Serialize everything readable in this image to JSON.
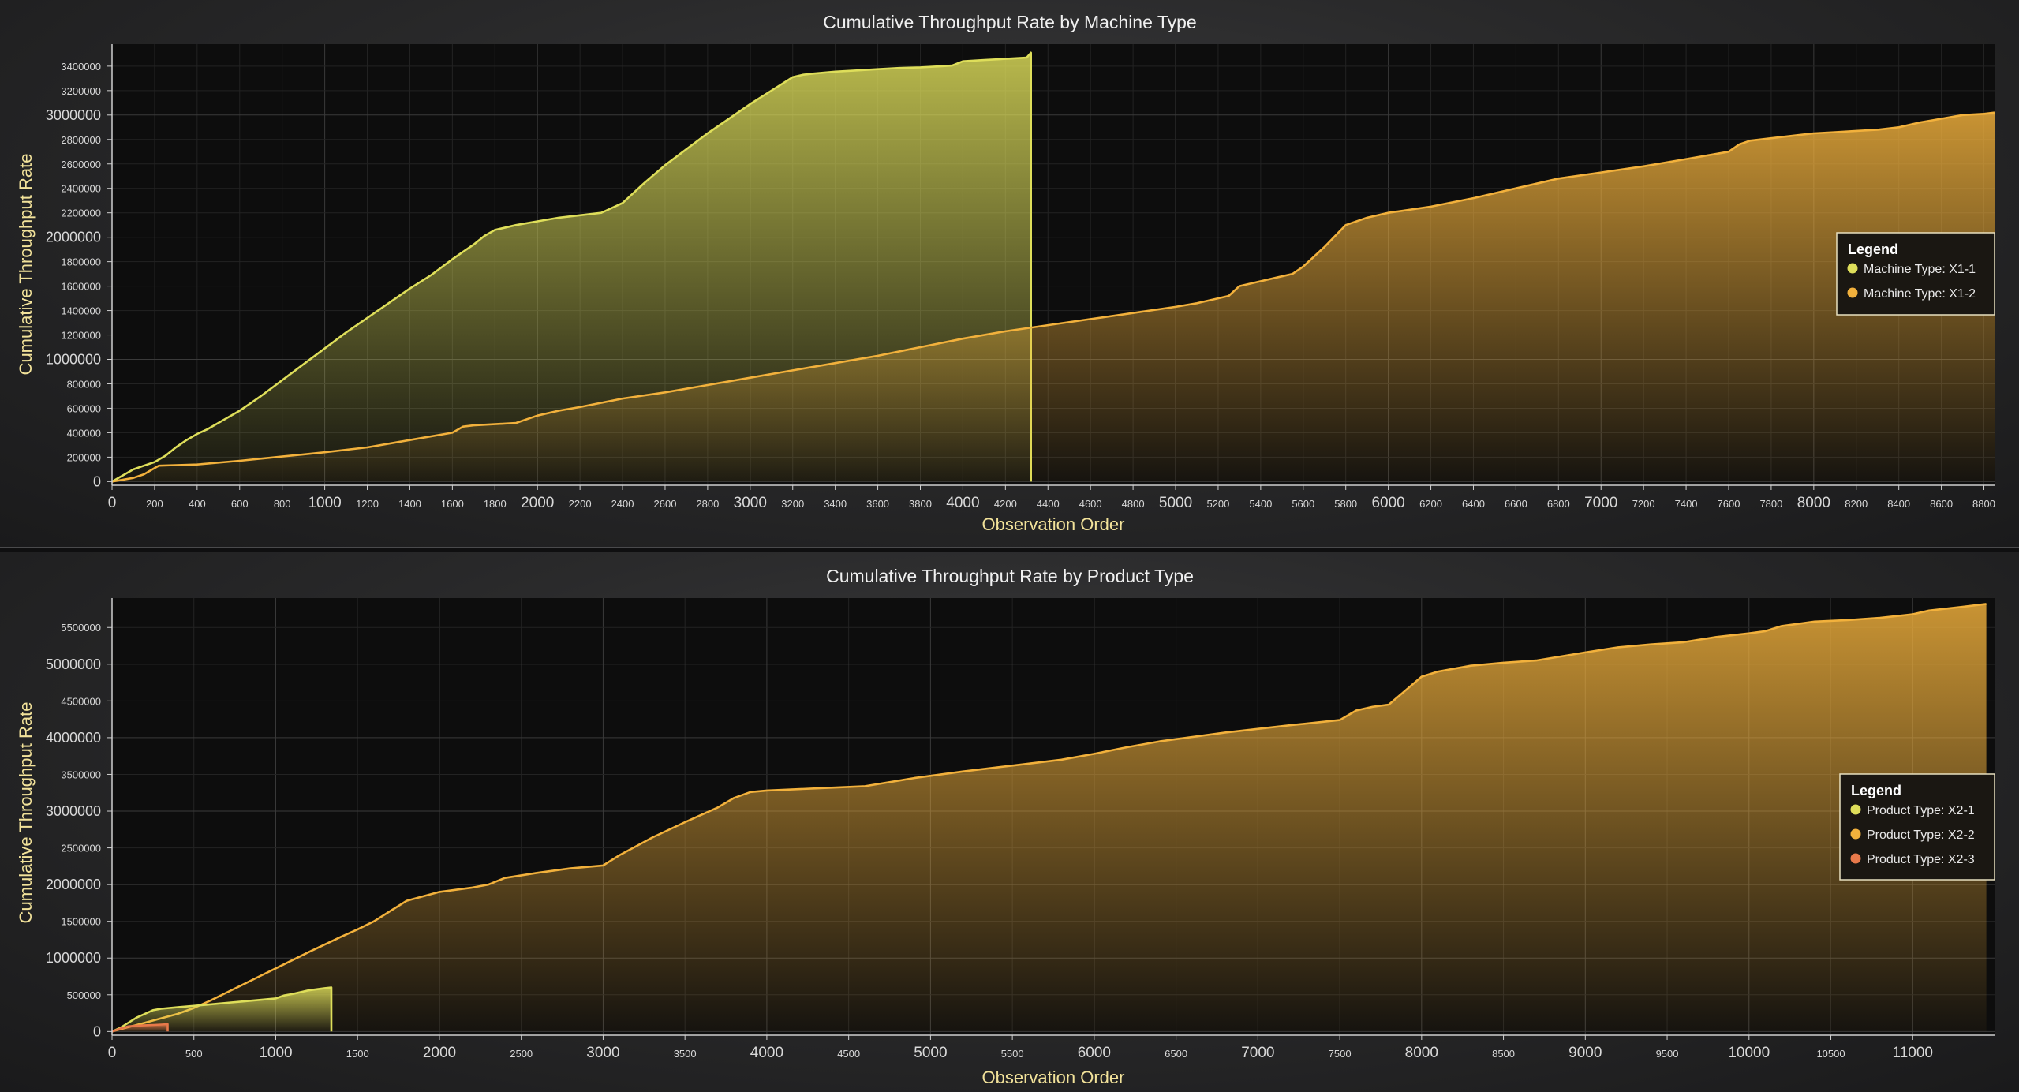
{
  "chart_data": [
    {
      "type": "area",
      "title": "Cumulative Throughput Rate by Machine Type",
      "xlabel": "Observation Order",
      "ylabel": "Cumulative Throughput Rate",
      "xlim": [
        0,
        8850
      ],
      "ylim": [
        -30000,
        3580000
      ],
      "x_ticks": [
        0,
        200,
        400,
        600,
        800,
        1000,
        1200,
        1400,
        1600,
        1800,
        2000,
        2200,
        2400,
        2600,
        2800,
        3000,
        3200,
        3400,
        3600,
        3800,
        4000,
        4200,
        4400,
        4600,
        4800,
        5000,
        5200,
        5400,
        5600,
        5800,
        6000,
        6200,
        6400,
        6600,
        6800,
        7000,
        7200,
        7400,
        7600,
        7800,
        8000,
        8200,
        8400,
        8600,
        8800
      ],
      "y_ticks": [
        0,
        200000,
        400000,
        600000,
        800000,
        1000000,
        1200000,
        1400000,
        1600000,
        1800000,
        2000000,
        2200000,
        2400000,
        2600000,
        2800000,
        3000000,
        3200000,
        3400000
      ],
      "major_every": 5,
      "grid": true,
      "legend": {
        "title": "Legend",
        "placement": "right",
        "entries": [
          "Machine Type: X1-1",
          "Machine Type: X1-2"
        ]
      },
      "series": [
        {
          "name": "Machine Type: X1-1",
          "color": "#dede5a",
          "x": [
            0,
            50,
            100,
            150,
            200,
            250,
            300,
            350,
            400,
            450,
            500,
            550,
            600,
            650,
            700,
            800,
            900,
            1000,
            1100,
            1200,
            1300,
            1400,
            1500,
            1600,
            1650,
            1700,
            1750,
            1800,
            1900,
            2000,
            2100,
            2200,
            2300,
            2350,
            2400,
            2450,
            2500,
            2600,
            2700,
            2800,
            2900,
            3000,
            3100,
            3200,
            3250,
            3300,
            3400,
            3500,
            3600,
            3700,
            3800,
            3900,
            3950,
            4000,
            4100,
            4200,
            4250,
            4300,
            4320,
            4320
          ],
          "values": [
            0,
            50000,
            100000,
            130000,
            160000,
            210000,
            280000,
            340000,
            390000,
            430000,
            480000,
            530000,
            580000,
            640000,
            700000,
            830000,
            960000,
            1090000,
            1220000,
            1340000,
            1460000,
            1580000,
            1690000,
            1820000,
            1880000,
            1940000,
            2010000,
            2060000,
            2100000,
            2130000,
            2160000,
            2180000,
            2200000,
            2240000,
            2280000,
            2360000,
            2440000,
            2590000,
            2720000,
            2850000,
            2970000,
            3090000,
            3200000,
            3310000,
            3330000,
            3340000,
            3355000,
            3365000,
            3375000,
            3385000,
            3390000,
            3400000,
            3405000,
            3440000,
            3450000,
            3460000,
            3465000,
            3470000,
            3510000,
            0
          ]
        },
        {
          "name": "Machine Type: X1-2",
          "color": "#f2b13c",
          "x": [
            0,
            100,
            150,
            200,
            220,
            300,
            400,
            600,
            800,
            1000,
            1200,
            1400,
            1600,
            1650,
            1700,
            1800,
            1900,
            2000,
            2100,
            2200,
            2400,
            2600,
            2800,
            3000,
            3200,
            3400,
            3600,
            3800,
            4000,
            4200,
            4400,
            4600,
            4800,
            5000,
            5100,
            5200,
            5250,
            5300,
            5400,
            5500,
            5550,
            5600,
            5700,
            5800,
            5900,
            6000,
            6200,
            6400,
            6600,
            6800,
            7000,
            7200,
            7400,
            7600,
            7650,
            7700,
            7800,
            7900,
            8000,
            8100,
            8200,
            8300,
            8400,
            8500,
            8600,
            8700,
            8800,
            8850
          ],
          "values": [
            0,
            30000,
            60000,
            110000,
            130000,
            135000,
            140000,
            170000,
            205000,
            240000,
            280000,
            340000,
            400000,
            450000,
            460000,
            470000,
            480000,
            540000,
            580000,
            610000,
            680000,
            730000,
            790000,
            850000,
            910000,
            970000,
            1030000,
            1100000,
            1170000,
            1230000,
            1280000,
            1330000,
            1380000,
            1430000,
            1460000,
            1500000,
            1520000,
            1600000,
            1640000,
            1680000,
            1700000,
            1760000,
            1920000,
            2100000,
            2160000,
            2200000,
            2250000,
            2320000,
            2400000,
            2480000,
            2530000,
            2580000,
            2640000,
            2700000,
            2760000,
            2790000,
            2810000,
            2830000,
            2850000,
            2860000,
            2870000,
            2880000,
            2900000,
            2940000,
            2970000,
            3000000,
            3010000,
            3020000
          ]
        }
      ]
    },
    {
      "type": "area",
      "title": "Cumulative Throughput Rate by Product Type",
      "xlabel": "Observation Order",
      "ylabel": "Cumulative Throughput Rate",
      "xlim": [
        0,
        11500
      ],
      "ylim": [
        -50000,
        5900000
      ],
      "x_ticks": [
        0,
        500,
        1000,
        1500,
        2000,
        2500,
        3000,
        3500,
        4000,
        4500,
        5000,
        5500,
        6000,
        6500,
        7000,
        7500,
        8000,
        8500,
        9000,
        9500,
        10000,
        10500,
        11000
      ],
      "y_ticks": [
        0,
        500000,
        1000000,
        1500000,
        2000000,
        2500000,
        3000000,
        3500000,
        4000000,
        4500000,
        5000000,
        5500000
      ],
      "major_every": 2,
      "grid": true,
      "legend": {
        "title": "Legend",
        "placement": "right",
        "entries": [
          "Product Type: X2-1",
          "Product Type: X2-2",
          "Product Type: X2-3"
        ]
      },
      "series": [
        {
          "name": "Product Type: X2-2",
          "color": "#f2b13c",
          "x": [
            0,
            100,
            200,
            300,
            400,
            500,
            600,
            700,
            800,
            900,
            1000,
            1200,
            1400,
            1500,
            1600,
            1700,
            1800,
            2000,
            2200,
            2300,
            2400,
            2600,
            2800,
            3000,
            3100,
            3300,
            3500,
            3700,
            3800,
            3900,
            4000,
            4300,
            4600,
            4900,
            5200,
            5500,
            5800,
            6000,
            6200,
            6400,
            6800,
            7200,
            7500,
            7600,
            7700,
            7800,
            8000,
            8100,
            8300,
            8500,
            8700,
            9000,
            9200,
            9400,
            9600,
            9800,
            10000,
            10100,
            10200,
            10400,
            10600,
            10800,
            11000,
            11100,
            11300,
            11450
          ],
          "values": [
            0,
            60000,
            120000,
            180000,
            240000,
            320000,
            420000,
            530000,
            640000,
            750000,
            860000,
            1080000,
            1290000,
            1390000,
            1500000,
            1640000,
            1780000,
            1900000,
            1960000,
            2000000,
            2090000,
            2160000,
            2220000,
            2260000,
            2400000,
            2640000,
            2850000,
            3050000,
            3180000,
            3260000,
            3280000,
            3310000,
            3340000,
            3450000,
            3540000,
            3620000,
            3700000,
            3780000,
            3870000,
            3950000,
            4070000,
            4170000,
            4240000,
            4370000,
            4420000,
            4450000,
            4830000,
            4900000,
            4980000,
            5020000,
            5050000,
            5160000,
            5230000,
            5270000,
            5300000,
            5370000,
            5420000,
            5450000,
            5520000,
            5580000,
            5600000,
            5630000,
            5680000,
            5730000,
            5780000,
            5820000
          ]
        },
        {
          "name": "Product Type: X2-1",
          "color": "#dede5a",
          "x": [
            0,
            50,
            100,
            150,
            200,
            250,
            300,
            400,
            500,
            600,
            700,
            800,
            900,
            1000,
            1050,
            1100,
            1200,
            1300,
            1340,
            1340
          ],
          "values": [
            0,
            50000,
            120000,
            190000,
            240000,
            290000,
            310000,
            330000,
            350000,
            370000,
            390000,
            410000,
            430000,
            450000,
            490000,
            510000,
            560000,
            590000,
            600000,
            0
          ]
        },
        {
          "name": "Product Type: X2-3",
          "color": "#e8794a",
          "x": [
            0,
            50,
            100,
            150,
            200,
            250,
            300,
            340,
            340
          ],
          "values": [
            0,
            40000,
            70000,
            80000,
            85000,
            90000,
            95000,
            100000,
            0
          ]
        }
      ]
    }
  ]
}
